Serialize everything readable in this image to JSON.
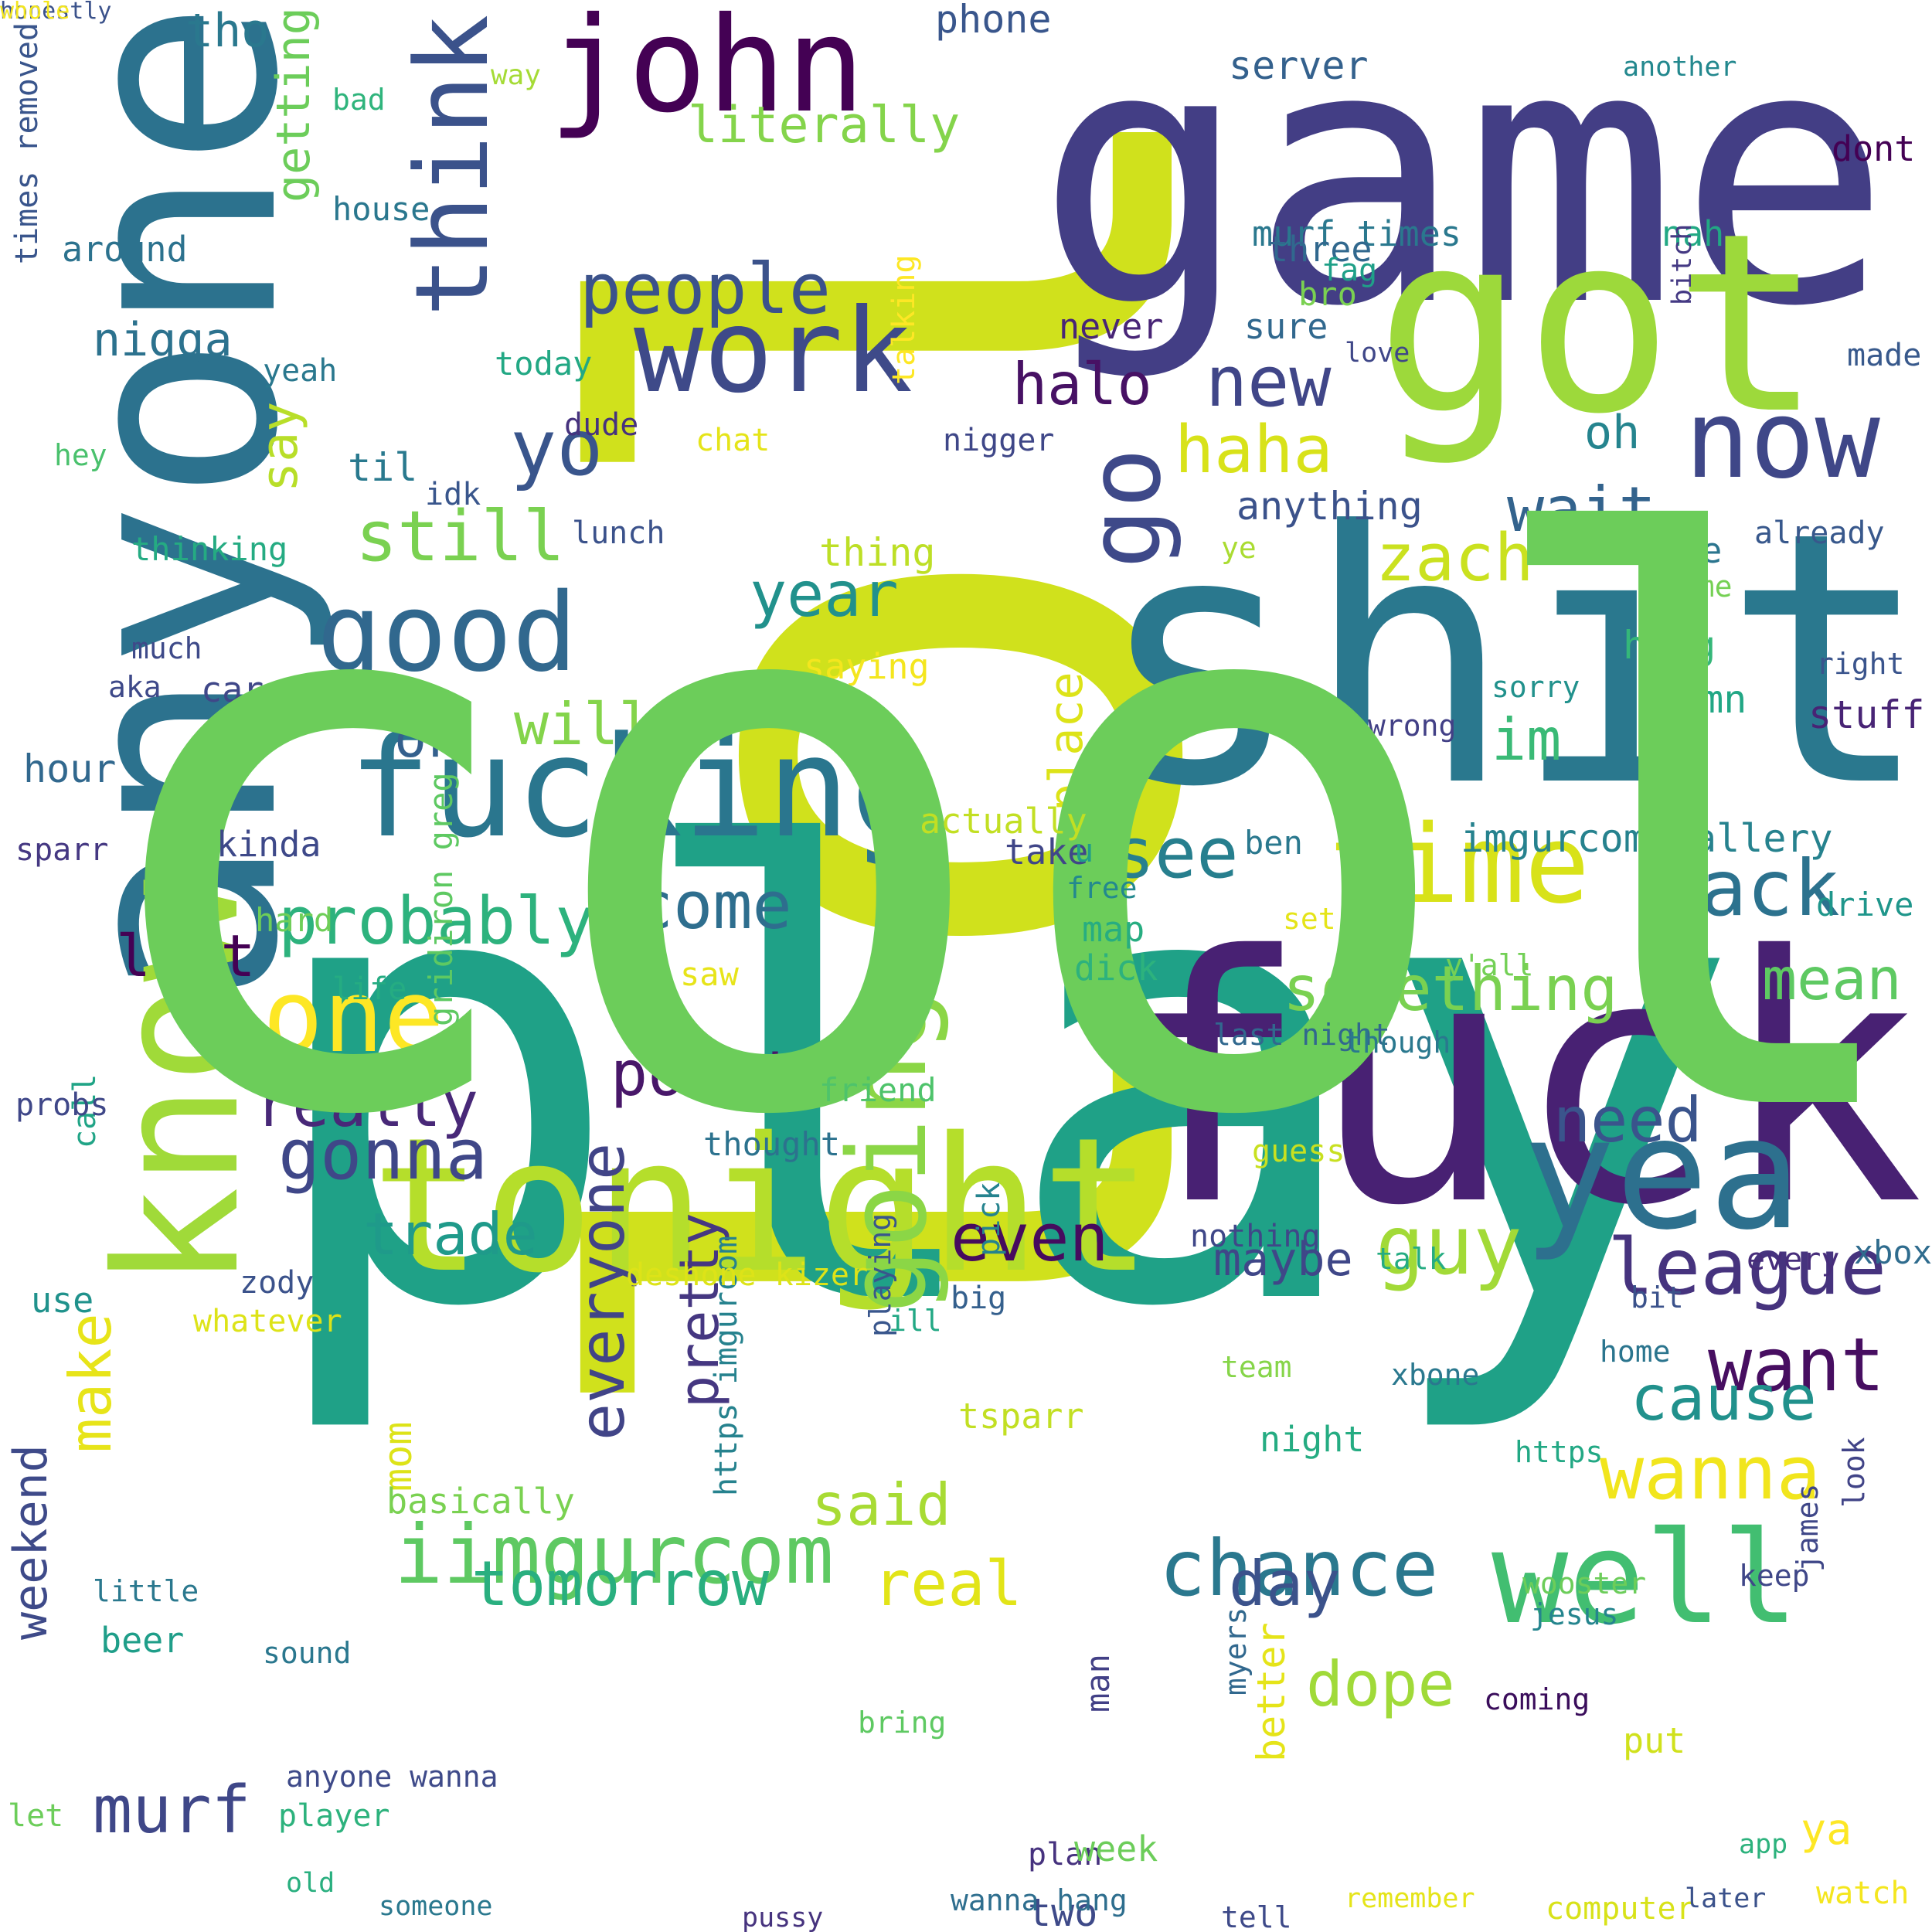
{
  "background": "#ffffff",
  "words": [
    {
      "text": "lol",
      "color": "#d0e11c",
      "vertical": true
    },
    {
      "text": "play",
      "color": "#1fa187"
    },
    {
      "text": "game",
      "color": "#433e85"
    },
    {
      "text": "shit",
      "color": "#2a788e"
    },
    {
      "text": "fuck",
      "color": "#482173"
    },
    {
      "text": "anyone",
      "color": "#2c728e",
      "vertical": true
    },
    {
      "text": "got",
      "color": "#9dd93b"
    },
    {
      "text": "tonight",
      "color": "#b5de2b"
    },
    {
      "text": "know",
      "color": "#a0da39",
      "vertical": true
    },
    {
      "text": "fucking",
      "color": "#2a768e"
    },
    {
      "text": "john",
      "color": "#440154"
    },
    {
      "text": "think",
      "color": "#3b528b",
      "vertical": true
    },
    {
      "text": "work",
      "color": "#3e4a89"
    },
    {
      "text": "good",
      "color": "#31688e"
    },
    {
      "text": "now",
      "color": "#3f4788"
    },
    {
      "text": "yea",
      "color": "#2d708e"
    },
    {
      "text": "time",
      "color": "#d8e219"
    },
    {
      "text": "well",
      "color": "#42be71"
    },
    {
      "text": "going",
      "color": "#8bd646",
      "vertical": true
    },
    {
      "text": "go",
      "color": "#3e4989",
      "vertical": true
    },
    {
      "text": "one",
      "color": "#fde725"
    },
    {
      "text": "people",
      "color": "#3b528b"
    },
    {
      "text": "iimgurcom",
      "color": "#5ec962"
    },
    {
      "text": "chance",
      "color": "#2a788e"
    },
    {
      "text": "league",
      "color": "#46337e"
    },
    {
      "text": "something",
      "color": "#7ad151"
    },
    {
      "text": "gonna",
      "color": "#3f4788"
    },
    {
      "text": "halo",
      "color": "#471164"
    },
    {
      "text": "new",
      "color": "#404688"
    },
    {
      "text": "haha",
      "color": "#d8e219"
    },
    {
      "text": "yo",
      "color": "#39558c"
    },
    {
      "text": "back",
      "color": "#2c728e"
    },
    {
      "text": "see",
      "color": "#277f8e"
    },
    {
      "text": "probably",
      "color": "#2db27d"
    },
    {
      "text": "come",
      "color": "#2e6e8e"
    },
    {
      "text": "last",
      "color": "#440154"
    },
    {
      "text": "really",
      "color": "#482878"
    },
    {
      "text": "point",
      "color": "#481769"
    },
    {
      "text": "everyone",
      "color": "#414487",
      "vertical": true
    },
    {
      "text": "pretty",
      "color": "#453781",
      "vertical": true
    },
    {
      "text": "trade",
      "color": "#1f9a8a"
    },
    {
      "text": "even",
      "color": "#460b5e"
    },
    {
      "text": "guy",
      "color": "#a2da37"
    },
    {
      "text": "need",
      "color": "#3a548c"
    },
    {
      "text": "want",
      "color": "#470e61"
    },
    {
      "text": "wanna",
      "color": "#f1e51d"
    },
    {
      "text": "cause",
      "color": "#21918c"
    },
    {
      "text": "mean",
      "color": "#5ec962"
    },
    {
      "text": "zach",
      "color": "#cae11f"
    },
    {
      "text": "wait",
      "color": "#33638d"
    },
    {
      "text": "year",
      "color": "#21918c"
    },
    {
      "text": "still",
      "color": "#7ad151"
    },
    {
      "text": "will",
      "color": "#84d44b"
    },
    {
      "text": "ok",
      "color": "#34608d"
    },
    {
      "text": "say",
      "color": "#b8de29",
      "vertical": true
    },
    {
      "text": "getting",
      "color": "#6ccd5a",
      "vertical": true
    },
    {
      "text": "make",
      "color": "#e7e419",
      "vertical": true
    },
    {
      "text": "murf",
      "color": "#3f4788"
    },
    {
      "text": "tomorrow",
      "color": "#29af7f"
    },
    {
      "text": "real",
      "color": "#e2e418"
    },
    {
      "text": "dope",
      "color": "#a0da39"
    },
    {
      "text": "said",
      "color": "#a8db34"
    },
    {
      "text": "day",
      "color": "#3b528b"
    },
    {
      "text": "im",
      "color": "#3aba76"
    },
    {
      "text": "literally",
      "color": "#84d44b"
    },
    {
      "text": "tho",
      "color": "#2a788e"
    },
    {
      "text": "nigga",
      "color": "#2c728e"
    },
    {
      "text": "weekend",
      "color": "#3e4a89",
      "vertical": true
    },
    {
      "text": "maybe",
      "color": "#3f4788"
    },
    {
      "text": "anything",
      "color": "#3b528b"
    },
    {
      "text": "oh",
      "color": "#25848e"
    },
    {
      "text": "imgurcom gallery",
      "color": "#26828e"
    },
    {
      "text": "murf times",
      "color": "#2a788e"
    },
    {
      "text": "nah",
      "color": "#22a884"
    },
    {
      "text": "three",
      "color": "#31688e"
    },
    {
      "text": "server",
      "color": "#34618d"
    },
    {
      "text": "phone",
      "color": "#39568c"
    },
    {
      "text": "dont",
      "color": "#440154"
    },
    {
      "text": "already",
      "color": "#38588c"
    },
    {
      "text": "none",
      "color": "#2b758e"
    },
    {
      "text": "damn",
      "color": "#22a785"
    },
    {
      "text": "stuff",
      "color": "#482475"
    },
    {
      "text": "hang",
      "color": "#35b779"
    },
    {
      "text": "place",
      "color": "#dde318",
      "vertical": true
    },
    {
      "text": "times removed",
      "color": "#39558c",
      "vertical": true
    },
    {
      "text": "around",
      "color": "#2c728e"
    },
    {
      "text": "house",
      "color": "#2a778e"
    },
    {
      "text": "bad",
      "color": "#2fb47c"
    },
    {
      "text": "way",
      "color": "#a5db36"
    },
    {
      "text": "today",
      "color": "#22a884"
    },
    {
      "text": "thing",
      "color": "#bddf26"
    },
    {
      "text": "saying",
      "color": "#f4e61e"
    },
    {
      "text": "lunch",
      "color": "#3b528b"
    },
    {
      "text": "dude",
      "color": "#46327e"
    },
    {
      "text": "chat",
      "color": "#e5e419"
    },
    {
      "text": "nigger",
      "color": "#3f4788"
    },
    {
      "text": "never",
      "color": "#482576"
    },
    {
      "text": "sure",
      "color": "#31688e"
    },
    {
      "text": "bro",
      "color": "#7ad151"
    },
    {
      "text": "fag",
      "color": "#1fa088"
    },
    {
      "text": "love",
      "color": "#3f4788"
    },
    {
      "text": "made",
      "color": "#38598c"
    },
    {
      "text": "bitch",
      "color": "#443983",
      "vertical": true
    },
    {
      "text": "another",
      "color": "#23888e"
    },
    {
      "text": "talking",
      "color": "#fde725",
      "vertical": true
    },
    {
      "text": "yeah",
      "color": "#2a788e"
    },
    {
      "text": "hey",
      "color": "#4ac16d"
    },
    {
      "text": "thinking",
      "color": "#25ab82"
    },
    {
      "text": "idk",
      "color": "#39568c"
    },
    {
      "text": "til",
      "color": "#29798e"
    },
    {
      "text": "ye",
      "color": "#aadc32"
    },
    {
      "text": "name",
      "color": "#75d054"
    },
    {
      "text": "right",
      "color": "#3a548c"
    },
    {
      "text": "sorry",
      "color": "#21918c"
    },
    {
      "text": "wrong",
      "color": "#424086"
    },
    {
      "text": "try",
      "color": "#2a788e"
    },
    {
      "text": "ass",
      "color": "#22a785"
    },
    {
      "text": "much",
      "color": "#3e4a89"
    },
    {
      "text": "aka",
      "color": "#3e4989"
    },
    {
      "text": "care",
      "color": "#3f4788"
    },
    {
      "text": "hour",
      "color": "#31688e"
    },
    {
      "text": "cool",
      "color": "#6ccd5a"
    },
    {
      "text": "gridiron greg",
      "color": "#5ec962",
      "vertical": true
    },
    {
      "text": "actually",
      "color": "#c2df23"
    },
    {
      "text": "take",
      "color": "#404688"
    },
    {
      "text": "u",
      "color": "#1f9e89"
    },
    {
      "text": "ben",
      "color": "#2a788e"
    },
    {
      "text": "drive",
      "color": "#1f968b"
    },
    {
      "text": "free",
      "color": "#23898e"
    },
    {
      "text": "set",
      "color": "#e5e419"
    },
    {
      "text": "map",
      "color": "#27ad81"
    },
    {
      "text": "y'all",
      "color": "#73d056"
    },
    {
      "text": "dick",
      "color": "#2db27d"
    },
    {
      "text": "saw",
      "color": "#e7e419"
    },
    {
      "text": "last night",
      "color": "#31688e"
    },
    {
      "text": "though",
      "color": "#2a788e"
    },
    {
      "text": "life",
      "color": "#25ac82"
    },
    {
      "text": "kinda",
      "color": "#3e4989"
    },
    {
      "text": "hard",
      "color": "#6ece58"
    },
    {
      "text": "sparr",
      "color": "#453882"
    },
    {
      "text": "friend",
      "color": "#4ec36b"
    },
    {
      "text": "call",
      "color": "#20a486",
      "vertical": true
    },
    {
      "text": "probs",
      "color": "#3f4788"
    },
    {
      "text": "thought",
      "color": "#2c728e"
    },
    {
      "text": "https imgurcom",
      "color": "#26828e",
      "vertical": true
    },
    {
      "text": "guess",
      "color": "#c8e020"
    },
    {
      "text": "xbox",
      "color": "#2f6c8e"
    },
    {
      "text": "pick",
      "color": "#25838e",
      "vertical": true
    },
    {
      "text": "playing",
      "color": "#39568c",
      "vertical": true
    },
    {
      "text": "nothing",
      "color": "#3f4788"
    },
    {
      "text": "talk",
      "color": "#25ac82"
    },
    {
      "text": "every",
      "color": "#472d7b"
    },
    {
      "text": "deshone kizer",
      "color": "#dde318"
    },
    {
      "text": "big",
      "color": "#35608d"
    },
    {
      "text": "zody",
      "color": "#3b528b"
    },
    {
      "text": "whatever",
      "color": "#dde318"
    },
    {
      "text": "use",
      "color": "#20928c"
    },
    {
      "text": "ill",
      "color": "#22a884"
    },
    {
      "text": "home",
      "color": "#2b758e"
    },
    {
      "text": "team",
      "color": "#86d549"
    },
    {
      "text": "xbone",
      "color": "#2a788e"
    },
    {
      "text": "bit",
      "color": "#3b528b"
    },
    {
      "text": "tsparr",
      "color": "#c2df23"
    },
    {
      "text": "mom",
      "color": "#dde318",
      "vertical": true
    },
    {
      "text": "basically",
      "color": "#7ad151"
    },
    {
      "text": "night",
      "color": "#25ac82"
    },
    {
      "text": "https",
      "color": "#22a884"
    },
    {
      "text": "look",
      "color": "#414487",
      "vertical": true
    },
    {
      "text": "james",
      "color": "#3f4788",
      "vertical": true
    },
    {
      "text": "keep",
      "color": "#3f4788"
    },
    {
      "text": "wooster",
      "color": "#6ccd5a"
    },
    {
      "text": "myers",
      "color": "#31688e",
      "vertical": true
    },
    {
      "text": "jesus",
      "color": "#25858e"
    },
    {
      "text": "little",
      "color": "#2a788e"
    },
    {
      "text": "sound",
      "color": "#2a778e"
    },
    {
      "text": "beer",
      "color": "#1f9e89"
    },
    {
      "text": "better",
      "color": "#e5e419",
      "vertical": true
    },
    {
      "text": "man",
      "color": "#424086",
      "vertical": true
    },
    {
      "text": "coming",
      "color": "#3a0d5b"
    },
    {
      "text": "bring",
      "color": "#5ec962"
    },
    {
      "text": "put",
      "color": "#d0e11c"
    },
    {
      "text": "ya",
      "color": "#fde725"
    },
    {
      "text": "anyone wanna",
      "color": "#3e4a89"
    },
    {
      "text": "let",
      "color": "#6ccd5a"
    },
    {
      "text": "player",
      "color": "#2db27d"
    },
    {
      "text": "plan",
      "color": "#46327e"
    },
    {
      "text": "week",
      "color": "#6ccd5a"
    },
    {
      "text": "app",
      "color": "#2db27d"
    },
    {
      "text": "two",
      "color": "#3e4a89"
    },
    {
      "text": "old",
      "color": "#29af7f"
    },
    {
      "text": "someone",
      "color": "#2a788e"
    },
    {
      "text": "pussy",
      "color": "#46337e"
    },
    {
      "text": "wanna hang",
      "color": "#2e6e8e"
    },
    {
      "text": "remember",
      "color": "#e5e419"
    },
    {
      "text": "tell",
      "color": "#3e4a89"
    },
    {
      "text": "computer",
      "color": "#d8e219"
    },
    {
      "text": "later",
      "color": "#3b528b"
    },
    {
      "text": "watch",
      "color": "#f4e61e"
    },
    {
      "text": "honestly",
      "color": "#3b528b"
    },
    {
      "text": "whole",
      "color": "#f4e61e"
    }
  ]
}
